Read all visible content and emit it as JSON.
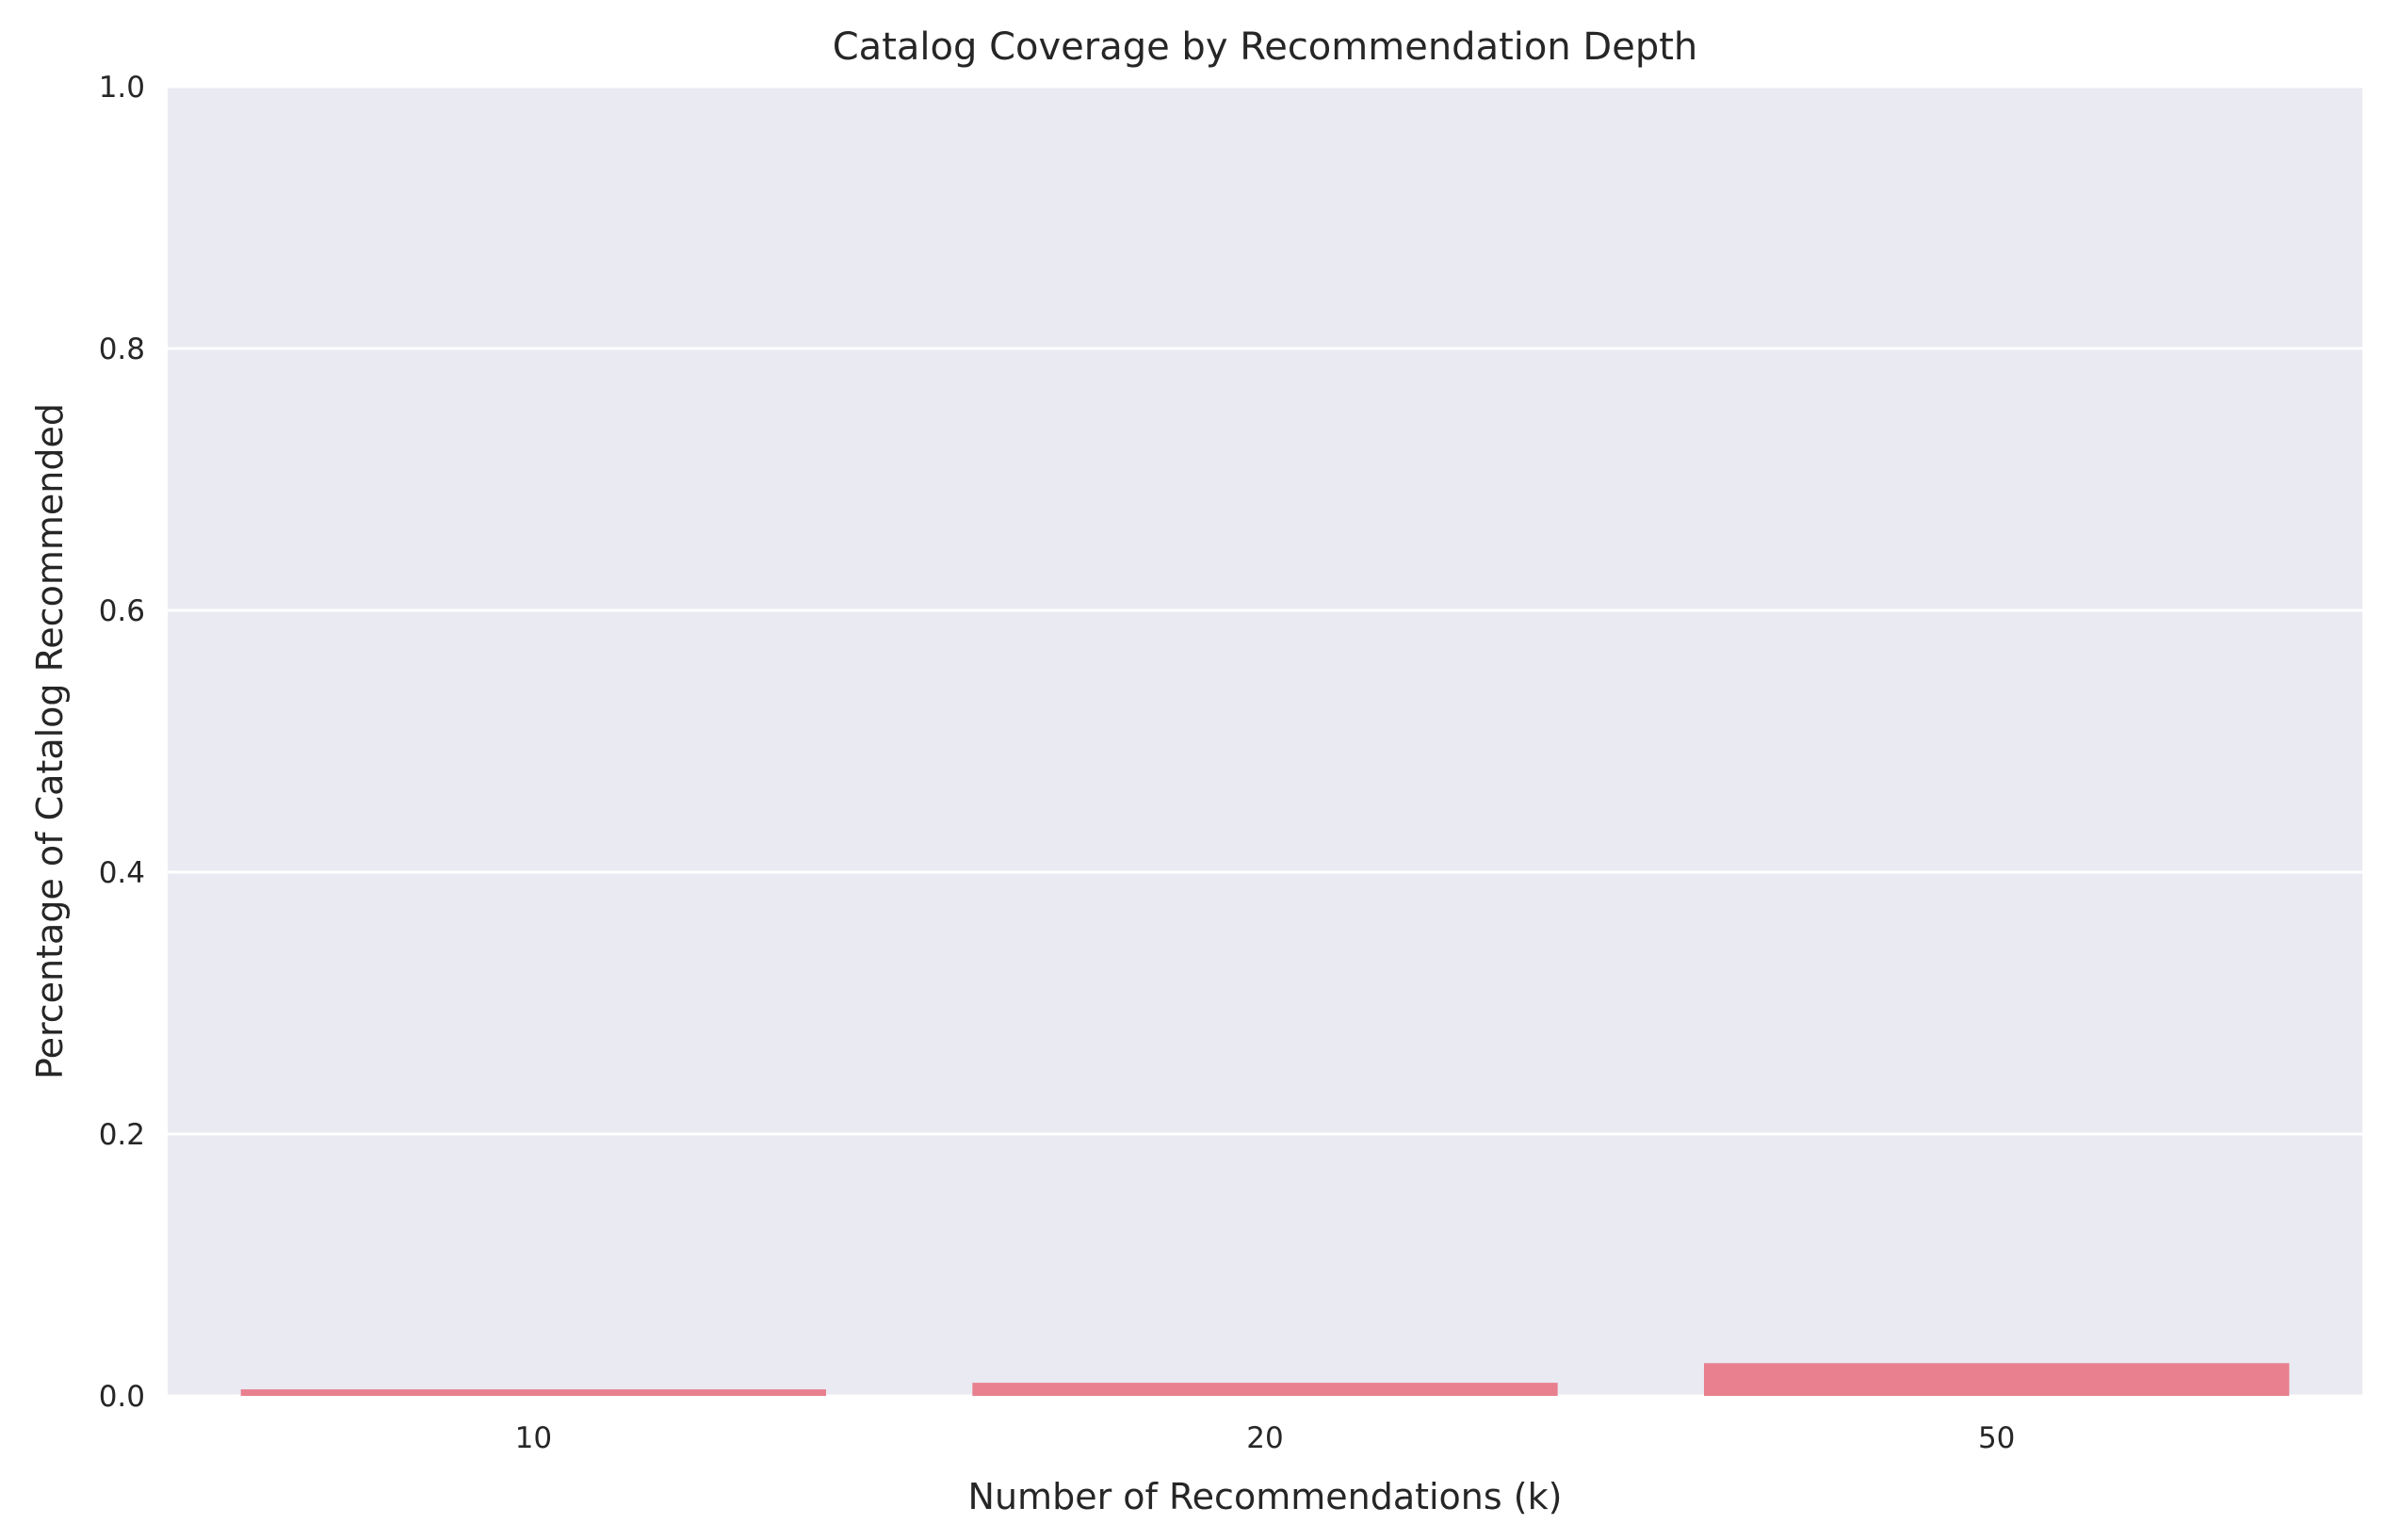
{
  "chart_data": {
    "type": "bar",
    "title": "Catalog Coverage by Recommendation Depth",
    "xlabel": "Number of Recommendations (k)",
    "ylabel": "Percentage of Catalog Recommended",
    "categories": [
      "10",
      "20",
      "50"
    ],
    "values": [
      0.005,
      0.01,
      0.025
    ],
    "ylim": [
      0,
      1.0
    ],
    "yticks": [
      "0.0",
      "0.2",
      "0.4",
      "0.6",
      "0.8",
      "1.0"
    ],
    "grid": true,
    "bar_color": "#e8808f",
    "plot_background": "#eaeaf2",
    "grid_color": "#ffffff"
  }
}
